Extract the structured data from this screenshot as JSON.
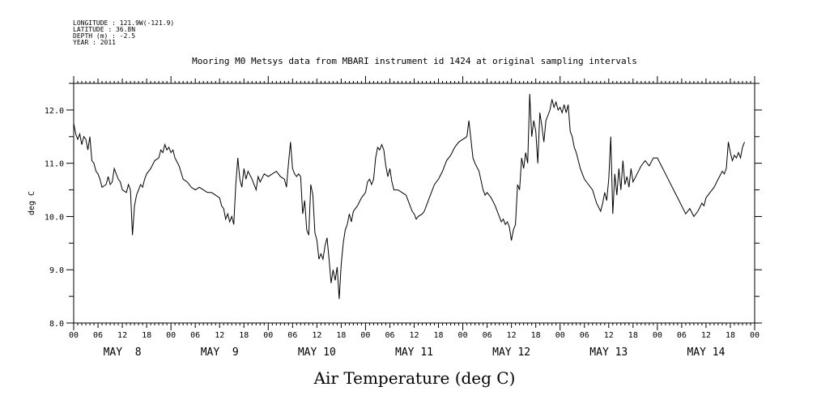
{
  "header": {
    "longitude": "LONGITUDE : 121.9W(-121.9)",
    "latitude": "LATITUDE : 36.8N",
    "depth": "DEPTH (m) : -2.5",
    "year": "YEAR : 2011"
  },
  "chart_data": {
    "type": "line",
    "title": "Mooring M0 Metsys data from MBARI instrument id 1424 at original sampling intervals",
    "xlabel": "Air Temperature (deg C)",
    "ylabel": "deg C",
    "x_unit": "hours",
    "xlim": [
      0,
      168
    ],
    "ylim": [
      8.0,
      12.5
    ],
    "y_ticks": [
      "8.0",
      "9.0",
      "10.0",
      "11.0",
      "12.0"
    ],
    "y_tick_values": [
      8.0,
      9.0,
      10.0,
      11.0,
      12.0
    ],
    "x_tick_labels": [
      "00",
      "06",
      "12",
      "18",
      "00",
      "06",
      "12",
      "18",
      "00",
      "06",
      "12",
      "18",
      "00",
      "06",
      "12",
      "18",
      "00",
      "06",
      "12",
      "18",
      "00",
      "06",
      "12",
      "18",
      "00",
      "06",
      "12",
      "18",
      "00"
    ],
    "day_labels": [
      "MAY  8",
      "MAY  9",
      "MAY 10",
      "MAY 11",
      "MAY 12",
      "MAY 13",
      "MAY 14"
    ],
    "grid": false,
    "series": [
      {
        "color": "#000000",
        "points": [
          [
            0.0,
            11.75
          ],
          [
            0.5,
            11.55
          ],
          [
            1.0,
            11.45
          ],
          [
            1.5,
            11.55
          ],
          [
            2.0,
            11.35
          ],
          [
            2.5,
            11.5
          ],
          [
            3.0,
            11.45
          ],
          [
            3.5,
            11.25
          ],
          [
            4.0,
            11.5
          ],
          [
            4.5,
            11.05
          ],
          [
            5.0,
            11.0
          ],
          [
            5.5,
            10.85
          ],
          [
            6.0,
            10.8
          ],
          [
            6.5,
            10.7
          ],
          [
            7.0,
            10.55
          ],
          [
            8.0,
            10.6
          ],
          [
            8.5,
            10.75
          ],
          [
            9.0,
            10.6
          ],
          [
            9.5,
            10.65
          ],
          [
            10.0,
            10.9
          ],
          [
            11.0,
            10.7
          ],
          [
            11.5,
            10.65
          ],
          [
            12.0,
            10.5
          ],
          [
            13.0,
            10.45
          ],
          [
            13.5,
            10.6
          ],
          [
            14.0,
            10.5
          ],
          [
            14.5,
            9.65
          ],
          [
            15.0,
            10.2
          ],
          [
            15.5,
            10.4
          ],
          [
            16.0,
            10.5
          ],
          [
            16.5,
            10.6
          ],
          [
            17.0,
            10.55
          ],
          [
            17.5,
            10.7
          ],
          [
            18.0,
            10.8
          ],
          [
            19.0,
            10.9
          ],
          [
            20.0,
            11.05
          ],
          [
            21.0,
            11.1
          ],
          [
            21.5,
            11.25
          ],
          [
            22.0,
            11.2
          ],
          [
            22.5,
            11.35
          ],
          [
            23.0,
            11.25
          ],
          [
            23.5,
            11.3
          ],
          [
            24.0,
            11.2
          ],
          [
            24.5,
            11.25
          ],
          [
            25.0,
            11.1
          ],
          [
            26.0,
            10.95
          ],
          [
            27.0,
            10.7
          ],
          [
            28.0,
            10.65
          ],
          [
            29.0,
            10.55
          ],
          [
            30.0,
            10.5
          ],
          [
            31.0,
            10.55
          ],
          [
            32.0,
            10.5
          ],
          [
            33.0,
            10.45
          ],
          [
            34.0,
            10.45
          ],
          [
            35.0,
            10.4
          ],
          [
            36.0,
            10.35
          ],
          [
            36.5,
            10.2
          ],
          [
            37.0,
            10.15
          ],
          [
            37.5,
            9.95
          ],
          [
            38.0,
            10.05
          ],
          [
            38.5,
            9.9
          ],
          [
            39.0,
            10.0
          ],
          [
            39.5,
            9.85
          ],
          [
            40.0,
            10.6
          ],
          [
            40.5,
            11.1
          ],
          [
            41.0,
            10.7
          ],
          [
            41.5,
            10.55
          ],
          [
            42.0,
            10.9
          ],
          [
            42.5,
            10.7
          ],
          [
            43.0,
            10.85
          ],
          [
            44.0,
            10.7
          ],
          [
            45.0,
            10.5
          ],
          [
            45.5,
            10.75
          ],
          [
            46.0,
            10.65
          ],
          [
            47.0,
            10.8
          ],
          [
            48.0,
            10.75
          ],
          [
            49.0,
            10.8
          ],
          [
            50.0,
            10.85
          ],
          [
            51.0,
            10.75
          ],
          [
            52.0,
            10.7
          ],
          [
            52.5,
            10.55
          ],
          [
            53.0,
            11.0
          ],
          [
            53.5,
            11.4
          ],
          [
            54.0,
            10.9
          ],
          [
            54.5,
            10.8
          ],
          [
            55.0,
            10.75
          ],
          [
            55.5,
            10.8
          ],
          [
            56.0,
            10.75
          ],
          [
            56.5,
            10.05
          ],
          [
            57.0,
            10.3
          ],
          [
            57.5,
            9.75
          ],
          [
            58.0,
            9.65
          ],
          [
            58.5,
            10.6
          ],
          [
            59.0,
            10.4
          ],
          [
            59.5,
            9.7
          ],
          [
            60.0,
            9.55
          ],
          [
            60.5,
            9.2
          ],
          [
            61.0,
            9.3
          ],
          [
            61.5,
            9.2
          ],
          [
            62.0,
            9.45
          ],
          [
            62.5,
            9.6
          ],
          [
            63.0,
            9.2
          ],
          [
            63.5,
            8.75
          ],
          [
            64.0,
            9.0
          ],
          [
            64.5,
            8.8
          ],
          [
            65.0,
            9.05
          ],
          [
            65.5,
            8.45
          ],
          [
            66.0,
            9.1
          ],
          [
            66.5,
            9.5
          ],
          [
            67.0,
            9.75
          ],
          [
            67.5,
            9.85
          ],
          [
            68.0,
            10.05
          ],
          [
            68.5,
            9.9
          ],
          [
            69.0,
            10.1
          ],
          [
            70.0,
            10.2
          ],
          [
            71.0,
            10.35
          ],
          [
            72.0,
            10.45
          ],
          [
            72.5,
            10.65
          ],
          [
            73.0,
            10.7
          ],
          [
            73.5,
            10.6
          ],
          [
            74.0,
            10.7
          ],
          [
            74.5,
            11.1
          ],
          [
            75.0,
            11.3
          ],
          [
            75.5,
            11.25
          ],
          [
            76.0,
            11.35
          ],
          [
            76.5,
            11.25
          ],
          [
            77.0,
            10.95
          ],
          [
            77.5,
            10.75
          ],
          [
            78.0,
            10.9
          ],
          [
            78.5,
            10.65
          ],
          [
            79.0,
            10.5
          ],
          [
            80.0,
            10.5
          ],
          [
            81.0,
            10.45
          ],
          [
            82.0,
            10.4
          ],
          [
            82.5,
            10.3
          ],
          [
            83.0,
            10.2
          ],
          [
            83.5,
            10.1
          ],
          [
            84.0,
            10.05
          ],
          [
            84.5,
            9.95
          ],
          [
            85.0,
            10.0
          ],
          [
            86.0,
            10.05
          ],
          [
            86.5,
            10.1
          ],
          [
            87.0,
            10.2
          ],
          [
            88.0,
            10.4
          ],
          [
            88.5,
            10.5
          ],
          [
            89.0,
            10.6
          ],
          [
            90.0,
            10.7
          ],
          [
            91.0,
            10.85
          ],
          [
            92.0,
            11.05
          ],
          [
            93.0,
            11.15
          ],
          [
            94.0,
            11.3
          ],
          [
            95.0,
            11.4
          ],
          [
            96.0,
            11.45
          ],
          [
            97.0,
            11.5
          ],
          [
            97.5,
            11.8
          ],
          [
            98.0,
            11.45
          ],
          [
            98.5,
            11.1
          ],
          [
            99.0,
            11.0
          ],
          [
            100.0,
            10.85
          ],
          [
            101.0,
            10.5
          ],
          [
            101.5,
            10.4
          ],
          [
            102.0,
            10.45
          ],
          [
            103.0,
            10.35
          ],
          [
            104.0,
            10.2
          ],
          [
            104.5,
            10.1
          ],
          [
            105.0,
            10.0
          ],
          [
            105.5,
            9.9
          ],
          [
            106.0,
            9.95
          ],
          [
            106.5,
            9.85
          ],
          [
            107.0,
            9.9
          ],
          [
            107.5,
            9.8
          ],
          [
            108.0,
            9.55
          ],
          [
            108.5,
            9.75
          ],
          [
            109.0,
            9.85
          ],
          [
            109.5,
            10.6
          ],
          [
            110.0,
            10.5
          ],
          [
            110.5,
            11.1
          ],
          [
            111.0,
            10.9
          ],
          [
            111.5,
            11.2
          ],
          [
            112.0,
            11.0
          ],
          [
            112.5,
            12.3
          ],
          [
            113.0,
            11.5
          ],
          [
            113.5,
            11.8
          ],
          [
            114.0,
            11.6
          ],
          [
            114.5,
            11.0
          ],
          [
            115.0,
            11.95
          ],
          [
            115.5,
            11.7
          ],
          [
            116.0,
            11.4
          ],
          [
            116.5,
            11.8
          ],
          [
            117.0,
            11.9
          ],
          [
            117.5,
            12.0
          ],
          [
            118.0,
            12.2
          ],
          [
            118.5,
            12.05
          ],
          [
            119.0,
            12.15
          ],
          [
            119.5,
            12.0
          ],
          [
            120.0,
            12.05
          ],
          [
            120.5,
            11.95
          ],
          [
            121.0,
            12.1
          ],
          [
            121.5,
            11.95
          ],
          [
            122.0,
            12.1
          ],
          [
            122.5,
            11.6
          ],
          [
            123.0,
            11.5
          ],
          [
            123.5,
            11.3
          ],
          [
            124.0,
            11.2
          ],
          [
            125.0,
            10.9
          ],
          [
            125.5,
            10.8
          ],
          [
            126.0,
            10.7
          ],
          [
            127.0,
            10.6
          ],
          [
            128.0,
            10.5
          ],
          [
            129.0,
            10.25
          ],
          [
            130.0,
            10.1
          ],
          [
            130.5,
            10.25
          ],
          [
            131.0,
            10.45
          ],
          [
            131.5,
            10.3
          ],
          [
            132.0,
            10.7
          ],
          [
            132.5,
            11.5
          ],
          [
            133.0,
            10.05
          ],
          [
            133.5,
            10.8
          ],
          [
            134.0,
            10.4
          ],
          [
            134.5,
            10.9
          ],
          [
            135.0,
            10.5
          ],
          [
            135.5,
            11.05
          ],
          [
            136.0,
            10.6
          ],
          [
            136.5,
            10.75
          ],
          [
            137.0,
            10.55
          ],
          [
            137.5,
            10.9
          ],
          [
            138.0,
            10.65
          ],
          [
            139.0,
            10.8
          ],
          [
            140.0,
            10.95
          ],
          [
            141.0,
            11.05
          ],
          [
            142.0,
            10.95
          ],
          [
            143.0,
            11.1
          ],
          [
            144.0,
            11.1
          ],
          [
            145.0,
            10.95
          ],
          [
            146.0,
            10.8
          ],
          [
            147.0,
            10.65
          ],
          [
            148.0,
            10.5
          ],
          [
            149.0,
            10.35
          ],
          [
            150.0,
            10.2
          ],
          [
            151.0,
            10.05
          ],
          [
            152.0,
            10.15
          ],
          [
            153.0,
            10.0
          ],
          [
            154.0,
            10.1
          ],
          [
            155.0,
            10.25
          ],
          [
            155.5,
            10.2
          ],
          [
            156.0,
            10.35
          ],
          [
            157.0,
            10.45
          ],
          [
            158.0,
            10.55
          ],
          [
            159.0,
            10.7
          ],
          [
            160.0,
            10.85
          ],
          [
            160.5,
            10.8
          ],
          [
            161.0,
            10.9
          ],
          [
            161.5,
            11.4
          ],
          [
            162.0,
            11.2
          ],
          [
            162.5,
            11.05
          ],
          [
            163.0,
            11.15
          ],
          [
            163.5,
            11.1
          ],
          [
            164.0,
            11.2
          ],
          [
            164.5,
            11.1
          ],
          [
            165.0,
            11.3
          ],
          [
            165.5,
            11.4
          ]
        ]
      }
    ]
  }
}
